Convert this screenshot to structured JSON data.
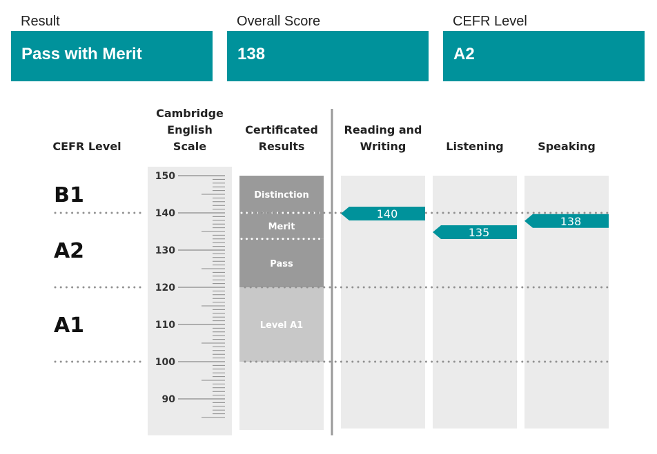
{
  "summary": {
    "result": {
      "label": "Result",
      "value": "Pass with Merit"
    },
    "score": {
      "label": "Overall Score",
      "value": "138"
    },
    "cefr": {
      "label": "CEFR Level",
      "value": "A2"
    }
  },
  "columns": {
    "cefr": "CEFR Level",
    "scale": "Cambridge\nEnglish\nScale",
    "certificated": "Certificated\nResults",
    "reading_writing": "Reading and\nWriting",
    "listening": "Listening",
    "speaking": "Speaking"
  },
  "colors": {
    "accent": "#00929b",
    "panel": "#ebebeb",
    "band_dark": "#9a9a9a",
    "band_light": "#c8c8c8",
    "dots": "#909090"
  },
  "chart_data": {
    "type": "bar",
    "scale": {
      "min": 85,
      "max": 150,
      "labeled_ticks": [
        150,
        140,
        130,
        120,
        110,
        100,
        90
      ]
    },
    "cefr_levels": [
      {
        "label": "B1",
        "from": 140,
        "to": 150
      },
      {
        "label": "A2",
        "from": 120,
        "to": 140
      },
      {
        "label": "A1",
        "from": 100,
        "to": 120
      }
    ],
    "cefr_boundaries": [
      140,
      120,
      100
    ],
    "certificated_results": [
      {
        "label": "Distinction",
        "from": 140,
        "to": 150,
        "shade": "dark"
      },
      {
        "label": "Merit",
        "from": 133,
        "to": 140,
        "shade": "dark"
      },
      {
        "label": "Pass",
        "from": 120,
        "to": 133,
        "shade": "dark"
      },
      {
        "label": "Level A1",
        "from": 100,
        "to": 120,
        "shade": "light"
      }
    ],
    "merit_boundaries": [
      140,
      133
    ],
    "skills": [
      {
        "name": "Reading and Writing",
        "score": 140,
        "label": "140"
      },
      {
        "name": "Listening",
        "score": 135,
        "label": "135"
      },
      {
        "name": "Speaking",
        "score": 138,
        "label": "138"
      }
    ]
  }
}
